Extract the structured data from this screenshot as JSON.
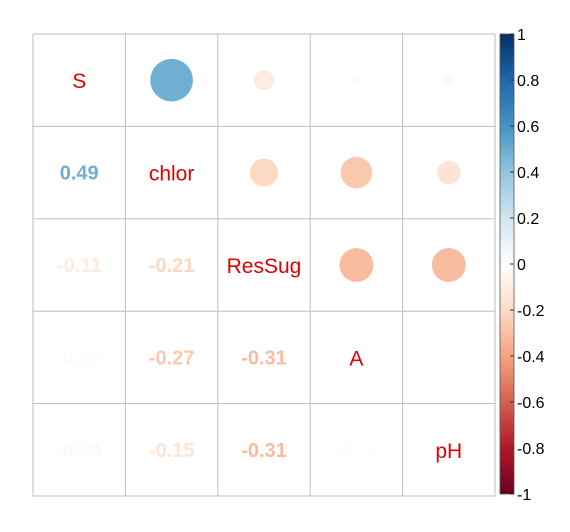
{
  "chart_data": {
    "type": "heatmap",
    "variables": [
      "S",
      "chlor",
      "ResSug",
      "A",
      "pH"
    ],
    "matrix": [
      [
        1.0,
        0.49,
        -0.11,
        -0.02,
        -0.04
      ],
      [
        0.49,
        1.0,
        -0.21,
        -0.27,
        -0.15
      ],
      [
        -0.11,
        -0.21,
        1.0,
        -0.31,
        -0.31
      ],
      [
        -0.02,
        -0.27,
        -0.31,
        1.0,
        -0.01
      ],
      [
        -0.04,
        -0.15,
        -0.31,
        -0.01,
        1.0
      ]
    ],
    "upper_method": "circle",
    "lower_method": "number",
    "diagonal": "variable-names",
    "colorbar": {
      "range": [
        -1,
        1
      ],
      "ticks": [
        "-1",
        "-0.8",
        "-0.6",
        "-0.4",
        "-0.2",
        "0",
        "0.2",
        "0.4",
        "0.6",
        "0.8",
        "1"
      ],
      "placement": "right"
    },
    "palette": [
      "#67001F",
      "#B2182B",
      "#D6604D",
      "#F4A582",
      "#FDDBC7",
      "#FFFFFF",
      "#D1E5F0",
      "#92C5DE",
      "#4393C3",
      "#2166AC",
      "#053061"
    ],
    "label_color": "#E00000",
    "grid": true
  }
}
